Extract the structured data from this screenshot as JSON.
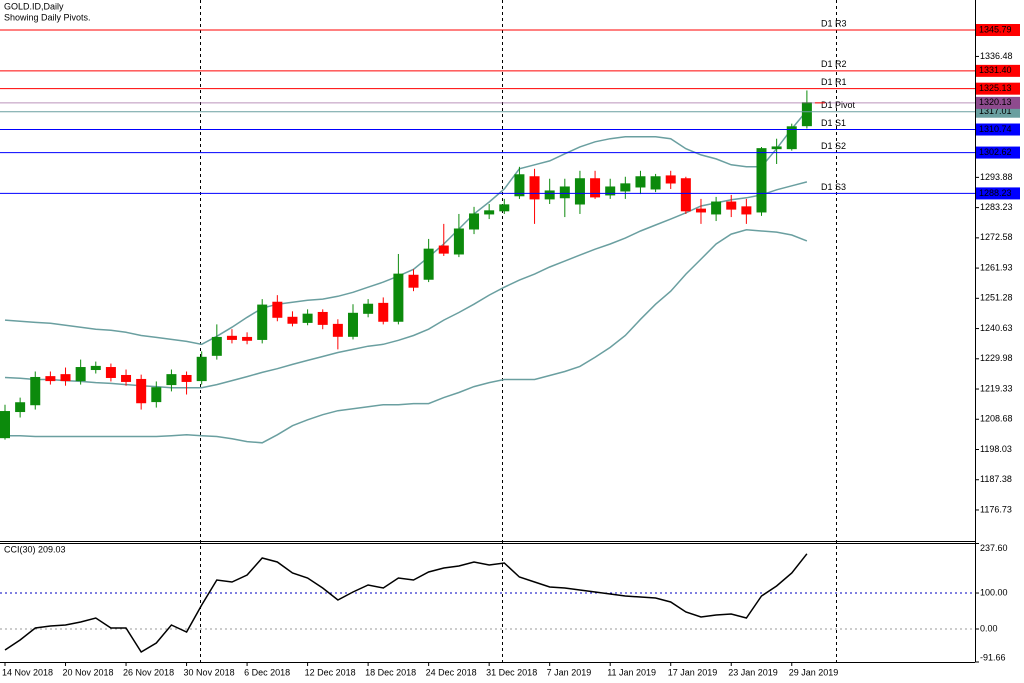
{
  "chart_data": [
    {
      "type": "candlestick",
      "title": "GOLD.ID,Daily",
      "subtitle": "Showing Daily Pivots.",
      "categories": [
        "14 Nov 2018",
        null,
        null,
        null,
        "20 Nov 2018",
        null,
        null,
        null,
        "26 Nov 2018",
        null,
        null,
        null,
        "30 Nov 2018",
        null,
        null,
        null,
        "6 Dec 2018",
        null,
        null,
        null,
        "12 Dec 2018",
        null,
        null,
        null,
        "18 Dec 2018",
        null,
        null,
        null,
        "24 Dec 2018",
        null,
        null,
        null,
        "31 Dec 2018",
        null,
        null,
        null,
        "7 Jan 2019",
        null,
        null,
        null,
        "11 Jan 2019",
        null,
        null,
        null,
        "17 Jan 2019",
        null,
        null,
        null,
        "23 Jan 2019",
        null,
        null,
        null,
        "29 Jan 2019",
        null
      ],
      "open": [
        1202.2,
        1211.4,
        1213.8,
        1223.7,
        1224.4,
        1222.3,
        1226.2,
        1226.9,
        1224.1,
        1222.7,
        1214.9,
        1220.9,
        1224.1,
        1222.3,
        1231.2,
        1237.9,
        1237.5,
        1236.8,
        1249.9,
        1244.6,
        1242.8,
        1246.3,
        1242.1,
        1237.9,
        1246.0,
        1249.5,
        1243.2,
        1259.4,
        1258.0,
        1269.7,
        1266.9,
        1275.7,
        1281.0,
        1282.1,
        1287.4,
        1294.1,
        1286.3,
        1286.7,
        1284.5,
        1293.4,
        1287.7,
        1289.1,
        1290.5,
        1289.8,
        1294.4,
        1293.4,
        1282.7,
        1281.0,
        1285.2,
        1283.5,
        1281.7,
        1304.0,
        1304.0,
        1312.1
      ],
      "high": [
        1213.8,
        1216.3,
        1225.5,
        1225.5,
        1226.9,
        1229.7,
        1229.0,
        1228.3,
        1226.2,
        1224.4,
        1222.0,
        1226.2,
        1225.5,
        1232.6,
        1242.1,
        1240.4,
        1239.3,
        1251.0,
        1252.4,
        1246.7,
        1247.4,
        1247.4,
        1243.9,
        1249.2,
        1251.0,
        1251.6,
        1266.9,
        1261.5,
        1272.2,
        1277.5,
        1281.0,
        1283.5,
        1284.5,
        1286.3,
        1297.6,
        1296.9,
        1293.4,
        1293.4,
        1296.2,
        1296.2,
        1293.4,
        1294.1,
        1296.2,
        1295.1,
        1296.2,
        1294.1,
        1286.3,
        1287.0,
        1287.7,
        1286.3,
        1304.6,
        1307.5,
        1312.8,
        1324.5
      ],
      "low": [
        1201.5,
        1209.3,
        1212.1,
        1220.9,
        1220.5,
        1220.9,
        1224.8,
        1222.0,
        1220.5,
        1212.1,
        1212.8,
        1218.5,
        1217.4,
        1220.9,
        1229.7,
        1235.4,
        1235.1,
        1235.4,
        1243.2,
        1241.4,
        1241.8,
        1240.4,
        1233.3,
        1236.8,
        1244.6,
        1242.1,
        1242.1,
        1253.8,
        1257.0,
        1266.2,
        1265.8,
        1273.9,
        1279.2,
        1281.0,
        1286.3,
        1277.5,
        1284.5,
        1279.9,
        1281.0,
        1286.3,
        1286.3,
        1286.3,
        1288.0,
        1288.7,
        1289.8,
        1281.0,
        1277.5,
        1278.5,
        1279.9,
        1277.5,
        1280.3,
        1298.6,
        1303.3,
        1311.1
      ],
      "close": [
        1211.4,
        1214.5,
        1223.4,
        1222.3,
        1222.3,
        1226.9,
        1227.3,
        1223.4,
        1222.0,
        1214.5,
        1219.8,
        1224.4,
        1222.0,
        1230.5,
        1237.5,
        1236.8,
        1236.5,
        1248.9,
        1244.6,
        1242.5,
        1245.7,
        1242.1,
        1237.9,
        1246.0,
        1249.2,
        1243.2,
        1259.8,
        1255.2,
        1268.6,
        1267.2,
        1275.7,
        1281.0,
        1282.1,
        1284.2,
        1294.8,
        1286.3,
        1289.1,
        1290.5,
        1293.4,
        1287.0,
        1290.5,
        1291.6,
        1294.1,
        1294.1,
        1291.9,
        1282.1,
        1281.7,
        1285.2,
        1282.7,
        1281.0,
        1304.0,
        1304.6,
        1311.7,
        1320.13
      ],
      "up_color": "#0c8a0c",
      "down_color": "#ff0000",
      "last_color": "#8e4b8e",
      "bands": {
        "color": "#6a9fa0",
        "upper": [
          1243.6,
          1243.2,
          1242.8,
          1242.5,
          1241.8,
          1241.1,
          1240.4,
          1240.0,
          1239.3,
          1238.2,
          1237.5,
          1236.8,
          1236.1,
          1235.1,
          1237.9,
          1241.1,
          1244.6,
          1247.8,
          1249.2,
          1249.9,
          1250.6,
          1251.0,
          1252.0,
          1253.4,
          1255.2,
          1257.0,
          1259.1,
          1261.5,
          1265.8,
          1270.4,
          1275.7,
          1281.0,
          1285.2,
          1289.8,
          1296.9,
          1298.3,
          1299.7,
          1302.2,
          1304.6,
          1306.4,
          1307.5,
          1308.2,
          1308.2,
          1308.2,
          1307.5,
          1304.0,
          1301.8,
          1300.4,
          1298.3,
          1297.6,
          1297.6,
          1304.0,
          1311.0,
          1317.4
        ],
        "middle": [
          1223.4,
          1223.1,
          1222.7,
          1222.7,
          1222.3,
          1222.0,
          1221.6,
          1221.3,
          1220.9,
          1220.5,
          1220.2,
          1219.8,
          1219.8,
          1219.8,
          1220.9,
          1222.3,
          1223.7,
          1225.2,
          1226.5,
          1228.0,
          1229.4,
          1230.8,
          1232.2,
          1233.3,
          1234.4,
          1235.1,
          1236.5,
          1238.2,
          1240.4,
          1243.6,
          1246.3,
          1249.2,
          1252.4,
          1255.2,
          1257.7,
          1259.8,
          1262.3,
          1264.4,
          1266.5,
          1268.6,
          1270.4,
          1272.5,
          1275.0,
          1277.1,
          1279.2,
          1281.4,
          1283.8,
          1284.9,
          1286.0,
          1286.7,
          1287.7,
          1289.5,
          1290.9,
          1292.3
        ],
        "lower": [
          1202.9,
          1202.9,
          1202.6,
          1202.6,
          1202.6,
          1202.6,
          1202.6,
          1202.6,
          1202.6,
          1202.6,
          1202.6,
          1202.9,
          1203.2,
          1202.9,
          1202.6,
          1201.8,
          1200.8,
          1200.4,
          1203.2,
          1206.4,
          1208.5,
          1210.3,
          1211.7,
          1212.4,
          1213.1,
          1213.8,
          1213.8,
          1214.2,
          1214.2,
          1216.3,
          1218.1,
          1220.2,
          1221.6,
          1222.7,
          1222.7,
          1222.7,
          1224.1,
          1225.5,
          1227.3,
          1230.5,
          1234.0,
          1238.2,
          1243.9,
          1249.2,
          1253.8,
          1259.8,
          1265.1,
          1270.4,
          1273.9,
          1275.4,
          1275.0,
          1274.6,
          1273.6,
          1271.5
        ]
      },
      "pivots": [
        {
          "name": "D1 R3",
          "value": 1345.79,
          "color": "#ff0000"
        },
        {
          "name": "D1 R2",
          "value": 1331.4,
          "value_label": "1331.40",
          "color": "#ff0000"
        },
        {
          "name": "D1 R1",
          "value": 1325.13,
          "color": "#ff0000"
        },
        {
          "name": "D1 Pivot",
          "value": 1317.01,
          "color": "#6a9fa0"
        },
        {
          "name": "D1 S1",
          "value": 1310.74,
          "color": "#0000ff"
        },
        {
          "name": "D1 S2",
          "value": 1302.62,
          "color": "#0000ff"
        },
        {
          "name": "D1 S3",
          "value": 1288.23,
          "color": "#0000ff"
        }
      ],
      "ylim": [
        1165.8,
        1356.36
      ],
      "yticks": [
        1176.73,
        1187.38,
        1198.03,
        1208.68,
        1219.33,
        1229.98,
        1240.63,
        1251.28,
        1261.93,
        1272.58,
        1283.23,
        1293.88,
        1336.48
      ]
    },
    {
      "type": "line",
      "title": "CCI(30) 209.03",
      "ylim": [
        -91.66,
        237.6
      ],
      "yticks": [
        {
          "value": 237.6,
          "label": "237.60"
        },
        {
          "value": 100,
          "label": "100.00"
        },
        {
          "value": 0,
          "label": "0.00"
        },
        -91.66
      ],
      "levels": [
        100,
        0
      ],
      "series": [
        {
          "color": "#000000",
          "values": [
            -58.3,
            -30.6,
            2.8,
            8.3,
            11.1,
            19.4,
            30.6,
            2.8,
            2.8,
            -63.9,
            -38.9,
            11.1,
            -8.3,
            66.7,
            136.1,
            130.6,
            150,
            197.2,
            186.1,
            155.6,
            141.7,
            113.9,
            80.6,
            102.8,
            122.2,
            113.9,
            141.7,
            136.1,
            158.3,
            169.4,
            175,
            186.1,
            177.8,
            183.3,
            144.4,
            130.6,
            116.7,
            113.9,
            108.3,
            102.8,
            97.2,
            91.7,
            88.9,
            86.1,
            75,
            47.2,
            33.3,
            38.9,
            41.7,
            30.6,
            91.7,
            119.4,
            155.6,
            209.03
          ]
        }
      ]
    }
  ]
}
